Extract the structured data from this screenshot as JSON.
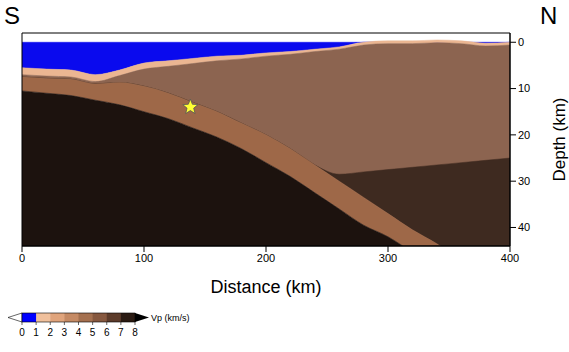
{
  "chart_data": {
    "type": "area",
    "x_label": "Distance (km)",
    "y_label": "Depth (km)",
    "annotations": [
      "S",
      "N"
    ],
    "x": [
      0,
      20,
      40,
      60,
      80,
      100,
      120,
      140,
      160,
      180,
      200,
      220,
      240,
      260,
      280,
      300,
      320,
      340,
      360,
      380,
      400
    ],
    "xlim": [
      0,
      400
    ],
    "xticks": [
      0,
      100,
      200,
      300,
      400
    ],
    "ylim": [
      -2,
      44
    ],
    "yticks": [
      0,
      10,
      20,
      30,
      40
    ],
    "layers": [
      {
        "color": "#0a0aee",
        "top": [
          0,
          0,
          0,
          0,
          0,
          0,
          0,
          0,
          0,
          0,
          0,
          0,
          0,
          0,
          0,
          0,
          0,
          0,
          0,
          0,
          0
        ],
        "bottom": [
          5.5,
          5.8,
          6,
          7,
          6,
          4.5,
          4,
          3.5,
          3,
          2.8,
          2.3,
          2,
          1.5,
          1,
          0,
          0,
          0,
          0,
          0,
          0.2,
          0
        ]
      },
      {
        "color": "#ebb692",
        "top": [
          5.5,
          5.8,
          6,
          7,
          6,
          4.5,
          4,
          3.5,
          3,
          2.8,
          2.3,
          2,
          1.5,
          1,
          0,
          -0.3,
          -0.3,
          -0.5,
          -0.3,
          0.2,
          0
        ],
        "bottom": [
          7,
          7.3,
          7.5,
          8.5,
          7.2,
          5.8,
          5.2,
          4.6,
          4,
          3.6,
          3,
          2.6,
          2,
          1.5,
          0.6,
          0.3,
          0.3,
          0.1,
          0.3,
          0.8,
          0.6
        ]
      },
      {
        "color": "#8c6450",
        "top": [
          7,
          7.3,
          7.5,
          8.5,
          7.2,
          5.8,
          5.2,
          4.6,
          4,
          3.6,
          3,
          2.6,
          2,
          1.5,
          0.6,
          0.3,
          0.3,
          0.1,
          0.3,
          0.8,
          0.6
        ],
        "bottom": [
          7.5,
          7.8,
          8,
          9,
          8.7,
          9.5,
          11,
          13,
          15,
          17.5,
          20,
          23,
          26.5,
          30,
          33.5,
          37,
          40.5,
          43.5,
          47,
          51,
          55
        ]
      },
      {
        "color": "#3e2a20",
        "top": [
          7.5,
          7.8,
          8,
          9,
          8.7,
          9.5,
          11,
          13,
          15,
          17.5,
          20,
          23,
          26.5,
          28.5,
          28,
          27.5,
          27,
          26.5,
          26,
          25.5,
          25
        ],
        "bottom": [
          7.5,
          7.8,
          8,
          9,
          8.7,
          9.5,
          11,
          13,
          15,
          17.5,
          20,
          23,
          26.5,
          30,
          33.5,
          37,
          40.5,
          43.5,
          47,
          51,
          55
        ]
      },
      {
        "color": "#9e6848",
        "top": [
          7.5,
          7.8,
          8,
          9,
          8.7,
          9.5,
          11,
          13,
          15,
          17.5,
          20,
          23,
          26.5,
          30,
          33.5,
          37,
          40.5,
          43.5,
          47,
          51,
          55
        ],
        "bottom": [
          10.5,
          11,
          11.5,
          12.5,
          13.5,
          15,
          16.5,
          18.5,
          20.5,
          23,
          26,
          29,
          32.5,
          36,
          39.5,
          42,
          45.5,
          50,
          54,
          58,
          62
        ]
      },
      {
        "color": "#1c120e",
        "top": [
          10.5,
          11,
          11.5,
          12.5,
          13.5,
          15,
          16.5,
          18.5,
          20.5,
          23,
          26,
          29,
          32.5,
          36,
          39.5,
          42,
          45.5,
          50,
          54,
          58,
          62
        ],
        "bottom": [
          44,
          44,
          44,
          44,
          44,
          44,
          44,
          44,
          44,
          44,
          44,
          44,
          44,
          44,
          44,
          44,
          44,
          44,
          44,
          44,
          44
        ]
      }
    ],
    "points": [
      {
        "x": 138,
        "y": 14,
        "marker": "star",
        "color": "#ffff33"
      }
    ],
    "colorbar": {
      "label": "Vp (km/s)",
      "range": [
        0,
        8
      ],
      "ticks": [
        0,
        1,
        2,
        3,
        4,
        5,
        6,
        7,
        8
      ],
      "colors": [
        "#0000ff",
        "#f0c09c",
        "#e0a47c",
        "#c58a64",
        "#a4704f",
        "#86583f",
        "#5c3b2a",
        "#2a1a12"
      ]
    }
  }
}
